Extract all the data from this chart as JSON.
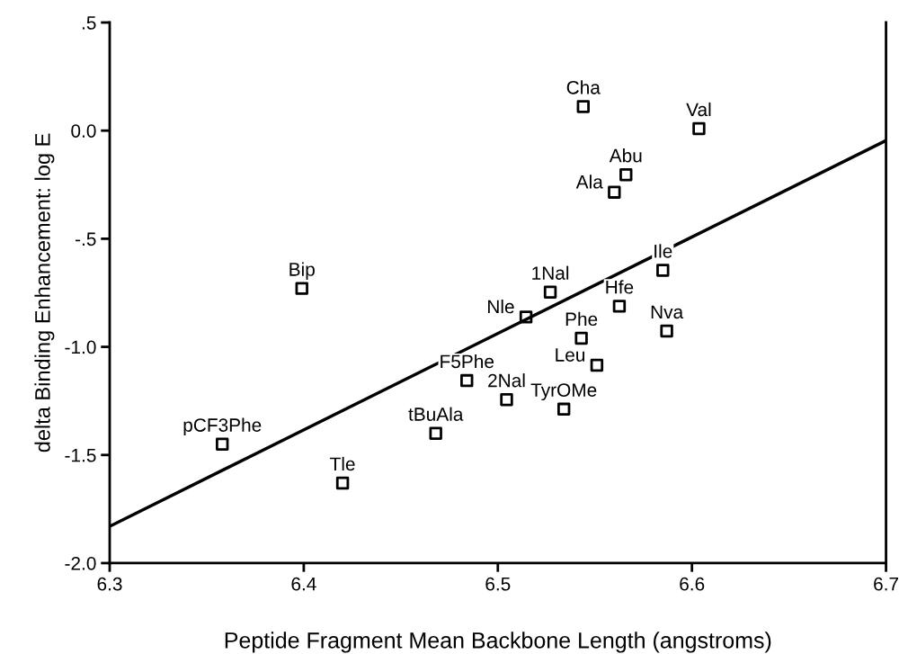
{
  "chart_data": {
    "type": "scatter",
    "xlabel": "Peptide Fragment Mean Backbone Length (angstroms)",
    "ylabel": "delta Binding Enhancement: log E",
    "xlim": [
      6.3,
      6.7
    ],
    "xticks": [
      6.3,
      6.4,
      6.5,
      6.6,
      6.7
    ],
    "ylim": [
      -2.0,
      0.5
    ],
    "yticks": [
      {
        "value": -2.0,
        "label": "-2.0"
      },
      {
        "value": -1.5,
        "label": "-1.5"
      },
      {
        "value": -1.0,
        "label": "-1.0"
      },
      {
        "value": -0.5,
        "label": "-.5"
      },
      {
        "value": 0.0,
        "label": "0.0"
      },
      {
        "value": 0.5,
        "label": ".5"
      }
    ],
    "grid": false,
    "legend": false,
    "series": [
      {
        "marker": "square",
        "color": "#000000",
        "x": [
          6.399,
          6.358,
          6.42,
          6.468,
          6.484,
          6.5045,
          6.534,
          6.5145,
          6.527,
          6.543,
          6.551,
          6.5626,
          6.587,
          6.585,
          6.56,
          6.566,
          6.544,
          6.6036
        ],
        "values": [
          -0.73,
          -1.45,
          -1.63,
          -1.4,
          -1.156,
          -1.244,
          -1.288,
          -0.862,
          -0.747,
          -0.96,
          -1.085,
          -0.812,
          -0.927,
          -0.646,
          -0.285,
          -0.204,
          0.111,
          0.009
        ]
      },
      {
        "type": "line",
        "marker": "none",
        "line_style": "solid",
        "color": "#000000",
        "x": [
          6.3,
          6.7
        ],
        "values": [
          -1.83,
          -0.046
        ]
      }
    ],
    "annotations": [
      {
        "text": "Bip",
        "x": 6.399,
        "y": -0.73
      },
      {
        "text": "pCF3Phe",
        "x": 6.358,
        "y": -1.45
      },
      {
        "text": "Tle",
        "x": 6.42,
        "y": -1.63
      },
      {
        "text": "tBuAla",
        "x": 6.468,
        "y": -1.4
      },
      {
        "text": "F5Phe",
        "x": 6.484,
        "y": -1.156
      },
      {
        "text": "2Nal",
        "x": 6.5045,
        "y": -1.244
      },
      {
        "text": "TyrOMe",
        "x": 6.534,
        "y": -1.288
      },
      {
        "text": "Nle",
        "x": 6.5145,
        "y": -0.862
      },
      {
        "text": "1Nal",
        "x": 6.527,
        "y": -0.747
      },
      {
        "text": "Phe",
        "x": 6.543,
        "y": -0.96
      },
      {
        "text": "Leu",
        "x": 6.551,
        "y": -1.085
      },
      {
        "text": "Hfe",
        "x": 6.5626,
        "y": -0.812
      },
      {
        "text": "Nva",
        "x": 6.587,
        "y": -0.927
      },
      {
        "text": "Ile",
        "x": 6.585,
        "y": -0.646
      },
      {
        "text": "Ala",
        "x": 6.56,
        "y": -0.285
      },
      {
        "text": "Abu",
        "x": 6.566,
        "y": -0.204
      },
      {
        "text": "Cha",
        "x": 6.544,
        "y": 0.111
      },
      {
        "text": "Val",
        "x": 6.6036,
        "y": 0.009
      }
    ]
  }
}
